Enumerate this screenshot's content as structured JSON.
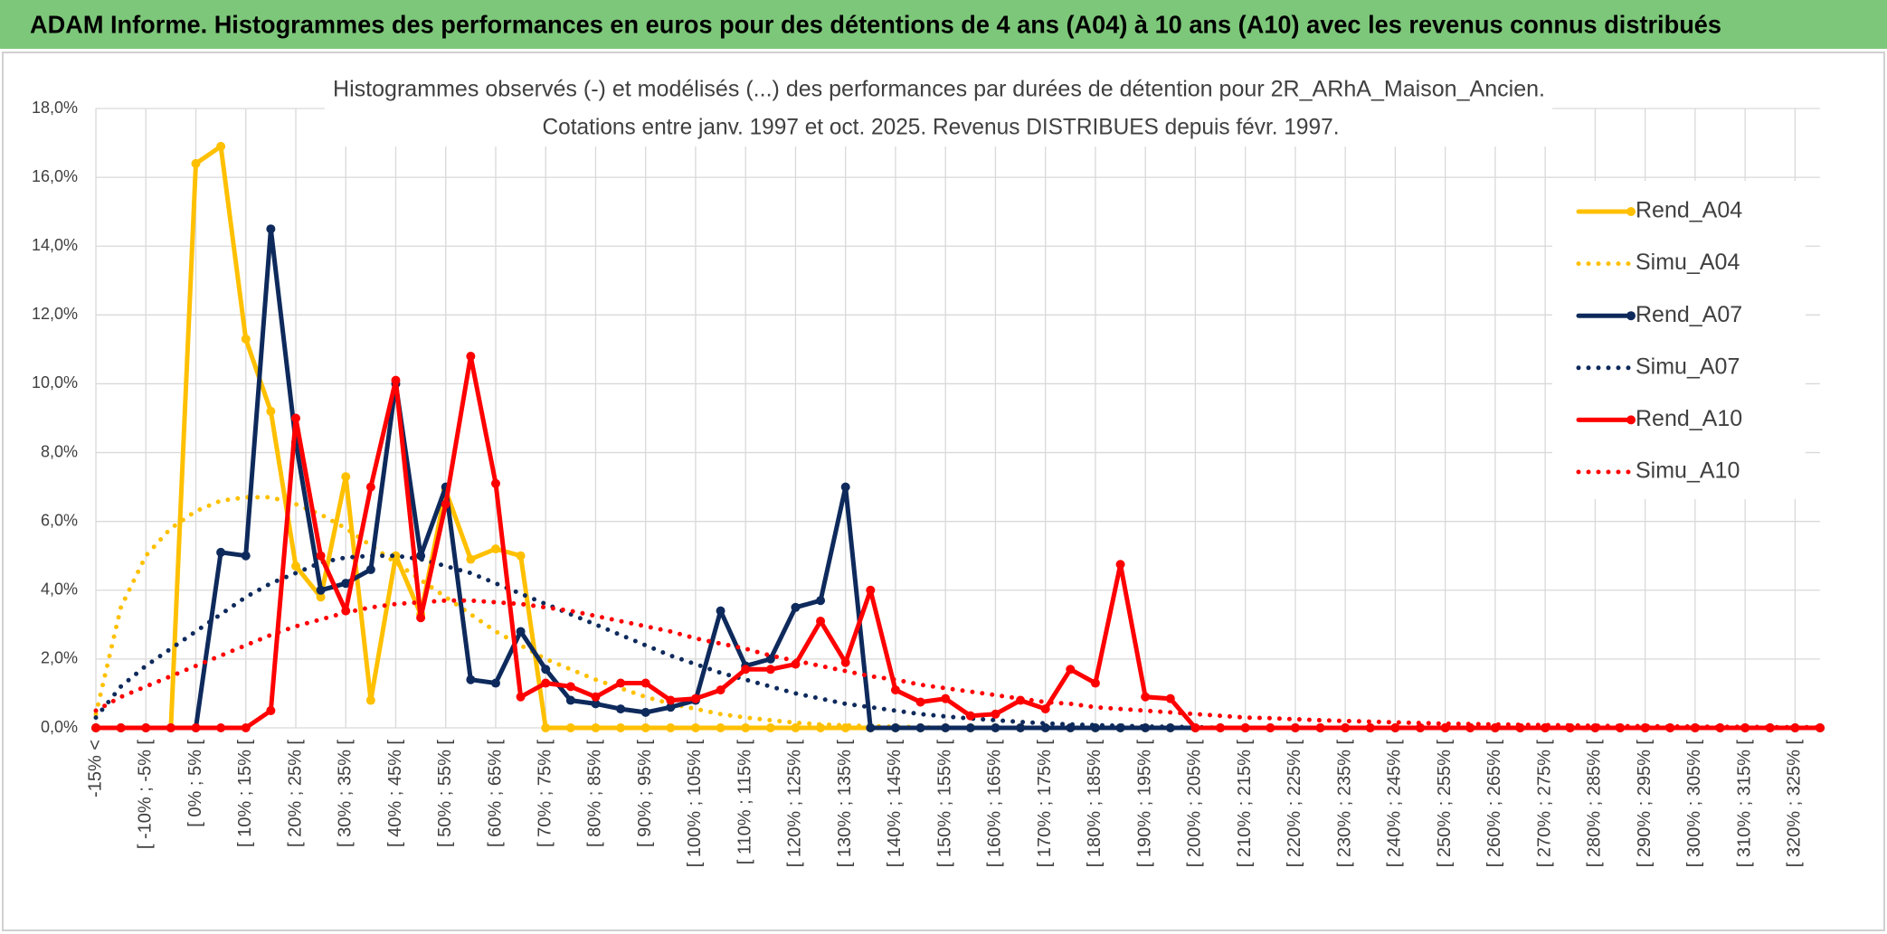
{
  "page_title": "ADAM Informe. Histogrammes des performances en euros pour des détentions de 4 ans (A04) à 10 ans (A10) avec les revenus connus distribués",
  "chart_data": {
    "type": "line",
    "title": "Histogrammes observés (-) et modélisés (...) des performances par durées de détention pour 2R_ARhA_Maison_Ancien.",
    "subtitle": "Cotations entre janv. 1997 et oct. 2025. Revenus DISTRIBUES depuis févr. 1997.",
    "categories": [
      "-15% <",
      null,
      "[ -10% ; -5% [",
      null,
      "[ 0% ; 5% [",
      null,
      "[ 10% ; 15% [",
      null,
      "[ 20% ; 25% [",
      null,
      "[ 30% ; 35% [",
      null,
      "[ 40% ; 45% [",
      null,
      "[ 50% ; 55% [",
      null,
      "[ 60% ; 65% [",
      null,
      "[ 70% ; 75% [",
      null,
      "[ 80% ; 85% [",
      null,
      "[ 90% ; 95% [",
      null,
      "[ 100% ; 105% [",
      null,
      "[ 110% ; 115% [",
      null,
      "[ 120% ; 125% [",
      null,
      "[ 130% ; 135% [",
      null,
      "[ 140% ; 145% [",
      null,
      "[ 150% ; 155% [",
      null,
      "[ 160% ; 165% [",
      null,
      "[ 170% ; 175% [",
      null,
      "[ 180% ; 185% [",
      null,
      "[ 190% ; 195% [",
      null,
      "[ 200% ; 205% [",
      null,
      "[ 210% ; 215% [",
      null,
      "[ 220% ; 225% [",
      null,
      "[ 230% ; 235% [",
      null,
      "[ 240% ; 245% [",
      null,
      "[ 250% ; 255% [",
      null,
      "[ 260% ; 265% [",
      null,
      "[ 270% ; 275% [",
      null,
      "[ 280% ; 285% [",
      null,
      "[ 290% ; 295% [",
      null,
      "[ 300% ; 305% [",
      null,
      "[ 310% ; 315% [",
      null,
      "[ 320% ; 325% [",
      null
    ],
    "ylim": [
      0,
      18
    ],
    "yticks": [
      {
        "value": 0,
        "label": "0,0%"
      },
      {
        "value": 2,
        "label": "2,0%"
      },
      {
        "value": 4,
        "label": "4,0%"
      },
      {
        "value": 6,
        "label": "6,0%"
      },
      {
        "value": 8,
        "label": "8,0%"
      },
      {
        "value": 10,
        "label": "10,0%"
      },
      {
        "value": 12,
        "label": "12,0%"
      },
      {
        "value": 14,
        "label": "14,0%"
      },
      {
        "value": 16,
        "label": "16,0%"
      },
      {
        "value": 18,
        "label": "18,0%"
      }
    ],
    "grid": true,
    "legend": "right",
    "series": [
      {
        "name": "Rend_A04",
        "color": "#FFC000",
        "style": "solid",
        "values": [
          0,
          0,
          0,
          0,
          16.4,
          16.9,
          11.3,
          9.2,
          4.7,
          3.8,
          7.3,
          0.8,
          5.0,
          3.3,
          6.9,
          4.9,
          5.2,
          5.0,
          0,
          0,
          0,
          0,
          0,
          0,
          0,
          0,
          0,
          0,
          0,
          0,
          0,
          0,
          0,
          0,
          0,
          0,
          0,
          0,
          0,
          0,
          0,
          0,
          0,
          0,
          0,
          0,
          0,
          0,
          0,
          0,
          0,
          0,
          0,
          0,
          0,
          0,
          0,
          0,
          0,
          0,
          0,
          0,
          0,
          0,
          0,
          0,
          0,
          0,
          0,
          0
        ]
      },
      {
        "name": "Simu_A04",
        "color": "#FFC000",
        "style": "dotted",
        "values": [
          0.4,
          3.5,
          5.0,
          5.8,
          6.3,
          6.6,
          6.7,
          6.7,
          6.5,
          6.2,
          5.8,
          5.3,
          4.8,
          4.3,
          3.8,
          3.3,
          2.8,
          2.4,
          2.0,
          1.7,
          1.4,
          1.15,
          0.9,
          0.7,
          0.55,
          0.4,
          0.3,
          0.22,
          0.15,
          0.1,
          0.07,
          0.05,
          0.03,
          0.02,
          0,
          0,
          0,
          0,
          0,
          0,
          0,
          0,
          0,
          0,
          0,
          0,
          0,
          0,
          0,
          0,
          0,
          0,
          0,
          0,
          0,
          0,
          0,
          0,
          0,
          0,
          0,
          0,
          0,
          0,
          0,
          0,
          0,
          0,
          0,
          0
        ]
      },
      {
        "name": "Rend_A07",
        "color": "#0E2A5C",
        "style": "solid",
        "values": [
          0,
          0,
          0,
          0,
          0,
          5.1,
          5.0,
          14.5,
          8.3,
          4.0,
          4.2,
          4.6,
          10.0,
          5.0,
          7.0,
          1.4,
          1.3,
          2.8,
          1.7,
          0.8,
          0.7,
          0.55,
          0.45,
          0.6,
          0.8,
          3.4,
          1.8,
          2.0,
          3.5,
          3.7,
          7.0,
          0,
          0,
          0,
          0,
          0,
          0,
          0,
          0,
          0,
          0,
          0,
          0,
          0,
          0,
          0,
          0,
          0,
          0,
          0,
          0,
          0,
          0,
          0,
          0,
          0,
          0,
          0,
          0,
          0,
          0,
          0,
          0,
          0,
          0,
          0,
          0,
          0,
          0,
          0
        ]
      },
      {
        "name": "Simu_A07",
        "color": "#0E2A5C",
        "style": "dotted",
        "values": [
          0.3,
          1.2,
          1.8,
          2.3,
          2.8,
          3.3,
          3.8,
          4.2,
          4.5,
          4.8,
          4.95,
          5.0,
          5.0,
          4.9,
          4.7,
          4.5,
          4.2,
          3.9,
          3.6,
          3.3,
          3.0,
          2.7,
          2.4,
          2.1,
          1.85,
          1.6,
          1.4,
          1.2,
          1.0,
          0.85,
          0.7,
          0.6,
          0.5,
          0.4,
          0.33,
          0.27,
          0.22,
          0.17,
          0.13,
          0.1,
          0.08,
          0.06,
          0.04,
          0.03,
          0.02,
          0,
          0,
          0,
          0,
          0,
          0,
          0,
          0,
          0,
          0,
          0,
          0,
          0,
          0,
          0,
          0,
          0,
          0,
          0,
          0,
          0,
          0,
          0,
          0,
          0
        ]
      },
      {
        "name": "Rend_A10",
        "color": "#FF0000",
        "style": "solid",
        "values": [
          0,
          0,
          0,
          0,
          0,
          0,
          0,
          0.5,
          9.0,
          5.0,
          3.4,
          7.0,
          10.1,
          3.2,
          6.5,
          10.8,
          7.1,
          0.9,
          1.3,
          1.2,
          0.9,
          1.3,
          1.3,
          0.8,
          0.85,
          1.1,
          1.7,
          1.7,
          1.85,
          3.1,
          1.9,
          4.0,
          1.1,
          0.75,
          0.85,
          0.35,
          0.4,
          0.8,
          0.55,
          1.7,
          1.3,
          4.75,
          0.9,
          0.85,
          0,
          0,
          0,
          0,
          0,
          0,
          0,
          0,
          0,
          0,
          0,
          0,
          0,
          0,
          0,
          0,
          0,
          0,
          0,
          0,
          0,
          0,
          0,
          0,
          0,
          0
        ]
      },
      {
        "name": "Simu_A10",
        "color": "#FF0000",
        "style": "dotted",
        "values": [
          0.5,
          0.9,
          1.2,
          1.5,
          1.8,
          2.1,
          2.4,
          2.7,
          2.95,
          3.15,
          3.35,
          3.5,
          3.6,
          3.65,
          3.7,
          3.7,
          3.65,
          3.6,
          3.5,
          3.4,
          3.25,
          3.1,
          2.95,
          2.8,
          2.6,
          2.45,
          2.3,
          2.1,
          1.95,
          1.8,
          1.65,
          1.5,
          1.4,
          1.25,
          1.15,
          1.05,
          0.95,
          0.85,
          0.75,
          0.7,
          0.6,
          0.55,
          0.5,
          0.45,
          0.4,
          0.35,
          0.3,
          0.28,
          0.25,
          0.22,
          0.2,
          0.18,
          0.16,
          0.14,
          0.12,
          0.11,
          0.1,
          0.09,
          0.08,
          0.07,
          0.06,
          0.05,
          0.05,
          0.04,
          0.04,
          0.03,
          0.03,
          0.02,
          0.02,
          0.02
        ]
      }
    ]
  }
}
